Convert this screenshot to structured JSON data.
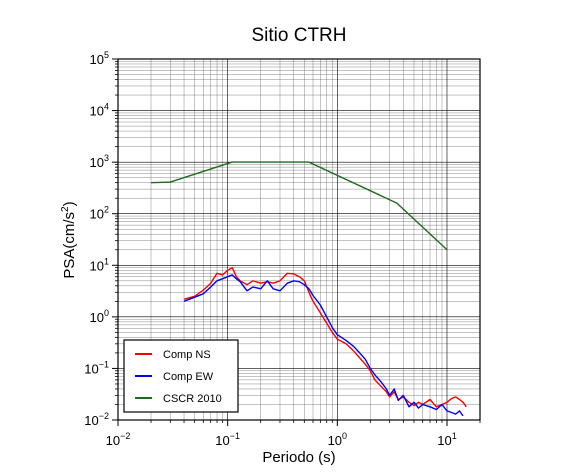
{
  "chart_data": {
    "type": "line",
    "title": "Sitio CTRH",
    "xlabel": "Periodo (s)",
    "ylabel": "PSA(cm/s",
    "ylabel_sup": "2",
    "ylabel_end": ")",
    "x_scale": "log",
    "y_scale": "log",
    "xlim": [
      0.01,
      20
    ],
    "ylim": [
      0.01,
      100000
    ],
    "grid": true,
    "x_ticks": [
      {
        "value": 0.01,
        "base": "10",
        "exp": "−2"
      },
      {
        "value": 0.1,
        "base": "10",
        "exp": "−1"
      },
      {
        "value": 1,
        "base": "10",
        "exp": "0"
      },
      {
        "value": 10,
        "base": "10",
        "exp": "1"
      }
    ],
    "y_ticks": [
      {
        "value": 0.01,
        "base": "10",
        "exp": "−2"
      },
      {
        "value": 0.1,
        "base": "10",
        "exp": "−1"
      },
      {
        "value": 1,
        "base": "10",
        "exp": "0"
      },
      {
        "value": 10,
        "base": "10",
        "exp": "1"
      },
      {
        "value": 100,
        "base": "10",
        "exp": "2"
      },
      {
        "value": 1000,
        "base": "10",
        "exp": "3"
      },
      {
        "value": 10000,
        "base": "10",
        "exp": "4"
      },
      {
        "value": 100000,
        "base": "10",
        "exp": "5"
      }
    ],
    "legend_position": "bottom-left",
    "series": [
      {
        "name": "Comp NS",
        "color": "#ff0000",
        "points": [
          [
            0.04,
            2.2
          ],
          [
            0.05,
            2.5
          ],
          [
            0.06,
            3.3
          ],
          [
            0.07,
            4.5
          ],
          [
            0.08,
            7
          ],
          [
            0.09,
            6.5
          ],
          [
            0.1,
            8
          ],
          [
            0.11,
            9
          ],
          [
            0.12,
            6
          ],
          [
            0.13,
            5
          ],
          [
            0.15,
            4.2
          ],
          [
            0.17,
            5
          ],
          [
            0.2,
            4.5
          ],
          [
            0.23,
            4.8
          ],
          [
            0.26,
            4.5
          ],
          [
            0.3,
            5
          ],
          [
            0.35,
            7
          ],
          [
            0.4,
            6.8
          ],
          [
            0.45,
            6
          ],
          [
            0.5,
            5
          ],
          [
            0.55,
            3
          ],
          [
            0.6,
            2
          ],
          [
            0.7,
            1.2
          ],
          [
            0.8,
            0.75
          ],
          [
            0.9,
            0.5
          ],
          [
            1,
            0.37
          ],
          [
            1.2,
            0.3
          ],
          [
            1.4,
            0.22
          ],
          [
            1.6,
            0.16
          ],
          [
            1.8,
            0.12
          ],
          [
            2,
            0.09
          ],
          [
            2.2,
            0.06
          ],
          [
            2.5,
            0.045
          ],
          [
            2.8,
            0.035
          ],
          [
            3,
            0.028
          ],
          [
            3.3,
            0.035
          ],
          [
            3.6,
            0.025
          ],
          [
            4,
            0.028
          ],
          [
            4.5,
            0.022
          ],
          [
            5,
            0.019
          ],
          [
            5.5,
            0.022
          ],
          [
            6,
            0.02
          ],
          [
            7,
            0.025
          ],
          [
            8,
            0.018
          ],
          [
            9,
            0.02
          ],
          [
            10,
            0.022
          ],
          [
            11,
            0.026
          ],
          [
            12,
            0.028
          ],
          [
            13,
            0.025
          ],
          [
            14,
            0.022
          ],
          [
            15,
            0.018
          ]
        ]
      },
      {
        "name": "Comp EW",
        "color": "#0000ff",
        "points": [
          [
            0.04,
            2
          ],
          [
            0.05,
            2.4
          ],
          [
            0.06,
            2.8
          ],
          [
            0.07,
            3.8
          ],
          [
            0.08,
            5
          ],
          [
            0.09,
            5.5
          ],
          [
            0.1,
            6
          ],
          [
            0.11,
            6.5
          ],
          [
            0.12,
            5.5
          ],
          [
            0.13,
            4.8
          ],
          [
            0.15,
            3.2
          ],
          [
            0.17,
            3.8
          ],
          [
            0.2,
            3.5
          ],
          [
            0.23,
            5
          ],
          [
            0.26,
            3.5
          ],
          [
            0.3,
            3.2
          ],
          [
            0.35,
            4.5
          ],
          [
            0.4,
            5
          ],
          [
            0.45,
            4.8
          ],
          [
            0.5,
            4.2
          ],
          [
            0.55,
            3.5
          ],
          [
            0.6,
            2.6
          ],
          [
            0.7,
            1.7
          ],
          [
            0.8,
            1
          ],
          [
            0.9,
            0.62
          ],
          [
            1,
            0.45
          ],
          [
            1.2,
            0.35
          ],
          [
            1.4,
            0.27
          ],
          [
            1.6,
            0.2
          ],
          [
            1.8,
            0.15
          ],
          [
            2,
            0.1
          ],
          [
            2.2,
            0.075
          ],
          [
            2.5,
            0.055
          ],
          [
            2.8,
            0.04
          ],
          [
            3,
            0.03
          ],
          [
            3.3,
            0.04
          ],
          [
            3.6,
            0.024
          ],
          [
            4,
            0.03
          ],
          [
            4.5,
            0.018
          ],
          [
            5,
            0.022
          ],
          [
            5.5,
            0.017
          ],
          [
            6,
            0.02
          ],
          [
            7,
            0.018
          ],
          [
            8,
            0.016
          ],
          [
            9,
            0.02
          ],
          [
            10,
            0.015
          ],
          [
            11,
            0.014
          ],
          [
            12,
            0.013
          ],
          [
            13,
            0.015
          ],
          [
            14,
            0.012
          ]
        ]
      },
      {
        "name": "CSCR 2010",
        "color": "#1f6b1f",
        "points": [
          [
            0.02,
            400
          ],
          [
            0.03,
            410
          ],
          [
            0.11,
            1000
          ],
          [
            0.55,
            1000
          ],
          [
            3.5,
            160
          ],
          [
            10,
            20
          ]
        ]
      }
    ]
  }
}
